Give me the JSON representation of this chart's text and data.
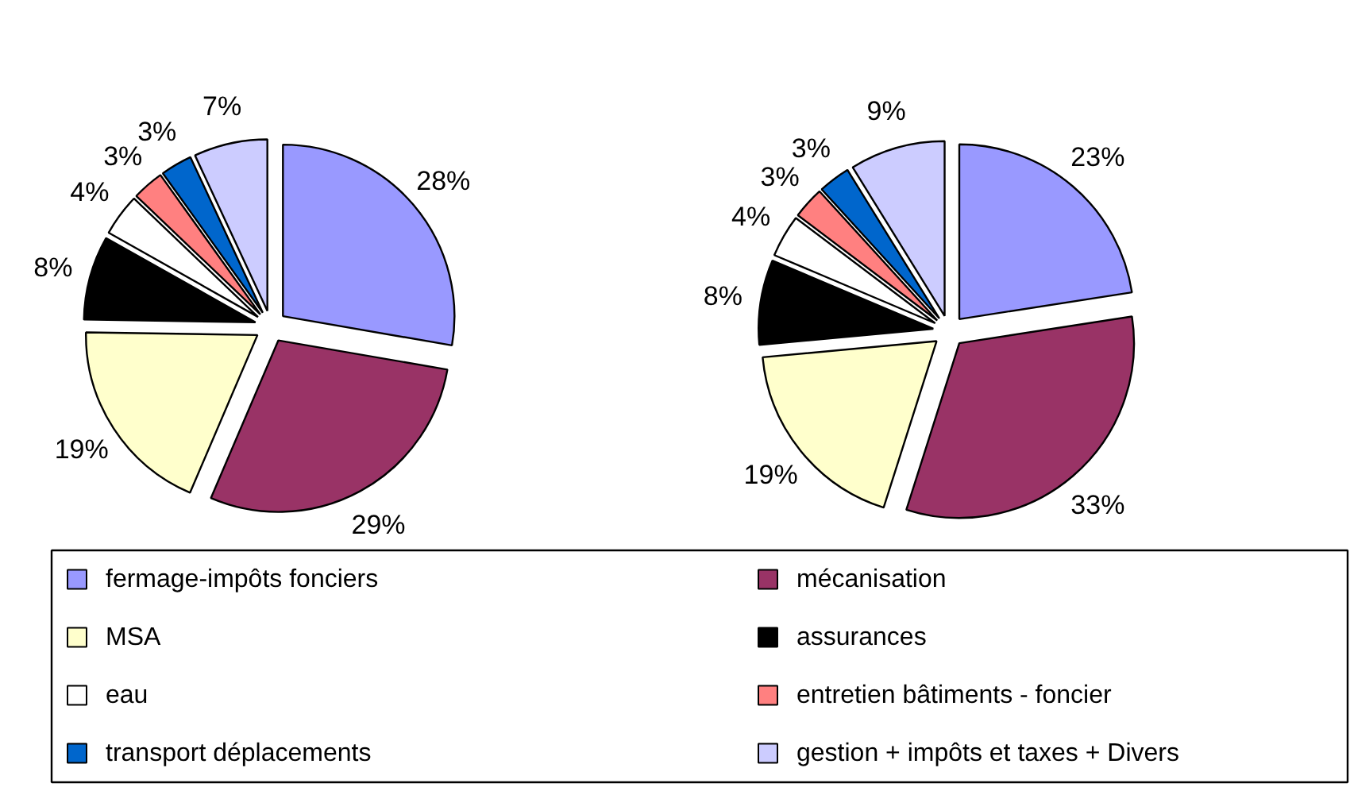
{
  "chart_data": [
    {
      "type": "pie",
      "categories": [
        "fermage-impôts fonciers",
        "mécanisation",
        "MSA",
        "assurances",
        "eau",
        "entretien bâtiments - foncier",
        "transport déplacements",
        "gestion + impôts et taxes + Divers"
      ],
      "values": [
        28,
        29,
        19,
        8,
        4,
        3,
        3,
        7
      ],
      "value_labels": [
        "28%",
        "29%",
        "19%",
        "8%",
        "4%",
        "3%",
        "3%",
        "7%"
      ],
      "colors": [
        "#9999ff",
        "#993366",
        "#ffffcc",
        "#000000",
        "#ffffff",
        "#ff8080",
        "#0066cc",
        "#ccccff"
      ],
      "legend": "bottom"
    },
    {
      "type": "pie",
      "values": [
        23,
        33,
        19,
        8,
        4,
        3,
        3,
        9
      ],
      "value_labels": [
        "23%",
        "33%",
        "19%",
        "8%",
        "4%",
        "3%",
        "3%",
        "9%"
      ],
      "colors": [
        "#9999ff",
        "#993366",
        "#ffffcc",
        "#000000",
        "#ffffff",
        "#ff8080",
        "#0066cc",
        "#ccccff"
      ]
    }
  ]
}
